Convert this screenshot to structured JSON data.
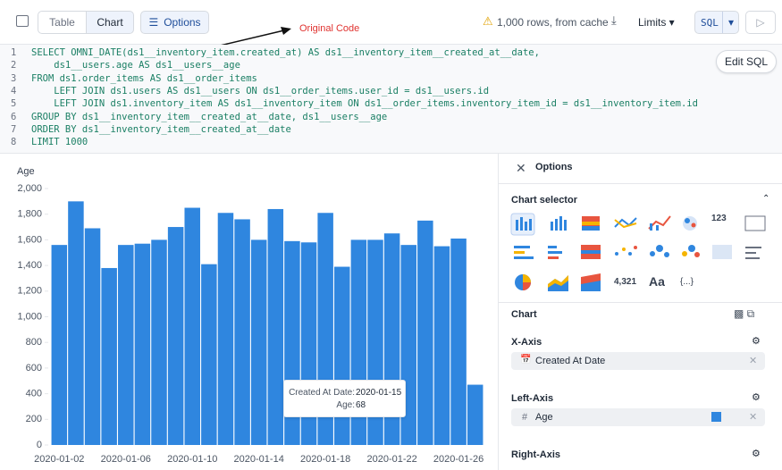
{
  "toolbar": {
    "tabs": [
      "Table",
      "Chart"
    ],
    "options": "Options",
    "status": "1,000 rows, from cache",
    "limits": "Limits",
    "sql": "SQL"
  },
  "annotation": "Original Code",
  "editor": {
    "line_numbers": [
      "1",
      "2",
      "3",
      "4",
      "5",
      "6",
      "7",
      "8"
    ],
    "lines": [
      "SELECT OMNI_DATE(ds1__inventory_item.created_at) AS ds1__inventory_item__created_at__date,",
      "    ds1__users.age AS ds1__users__age",
      "FROM ds1.order_items AS ds1__order_items",
      "    LEFT JOIN ds1.users AS ds1__users ON ds1__order_items.user_id = ds1__users.id",
      "    LEFT JOIN ds1.inventory_item AS ds1__inventory_item ON ds1__order_items.inventory_item_id = ds1__inventory_item.id",
      "GROUP BY ds1__inventory_item__created_at__date, ds1__users__age",
      "ORDER BY ds1__inventory_item__created_at__date",
      "LIMIT 1000"
    ],
    "edit_button": "Edit SQL"
  },
  "chart_data": {
    "type": "bar",
    "y_label": "Age",
    "categories": [
      "2020-01-02",
      null,
      null,
      null,
      "2020-01-06",
      null,
      null,
      null,
      "2020-01-10",
      null,
      null,
      null,
      "2020-01-14",
      null,
      null,
      null,
      "2020-01-18",
      null,
      null,
      null,
      "2020-01-22",
      null,
      null,
      null,
      "2020-01-26",
      null
    ],
    "values": [
      1560,
      1900,
      1690,
      1380,
      1560,
      1570,
      1600,
      1700,
      1850,
      1410,
      1810,
      1760,
      1600,
      1840,
      1590,
      1580,
      1810,
      1390,
      1600,
      1600,
      1650,
      1560,
      1750,
      1550,
      1610,
      470
    ],
    "color": "#2f86df",
    "ylim": [
      0,
      2000
    ],
    "yticks": [
      0,
      200,
      400,
      600,
      800,
      {
        "value": 1000,
        "label": "1,000"
      },
      {
        "value": 1200,
        "label": "1,200"
      },
      {
        "value": 1400,
        "label": "1,400"
      },
      {
        "value": 1600,
        "label": "1,600"
      },
      {
        "value": 1800,
        "label": "1,800"
      },
      {
        "value": 2000,
        "label": "2,000"
      }
    ],
    "tooltip": {
      "label1": "Created At Date:",
      "value1": "2020-01-15",
      "label2": "Age:",
      "value2": "68"
    }
  },
  "panel": {
    "title": "Options",
    "selector": "Chart selector",
    "selector_texts": [
      "123",
      "4,321",
      "Aa",
      "{...}"
    ],
    "chart": "Chart",
    "x_axis": "X-Axis",
    "x_field": "Created At Date",
    "left_axis": "Left-Axis",
    "left_field": "Age",
    "right_axis": "Right-Axis"
  }
}
